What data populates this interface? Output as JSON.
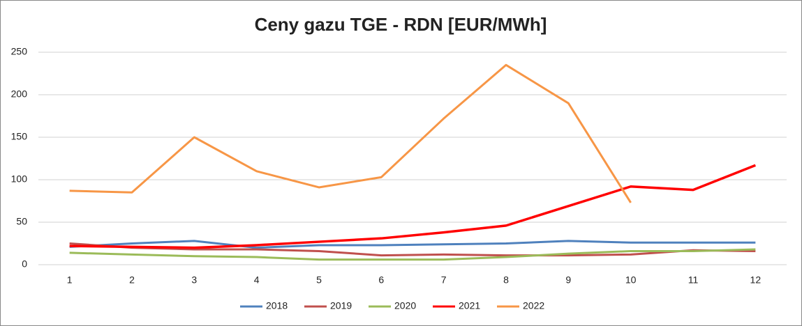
{
  "chart_data": {
    "type": "line",
    "title": "Ceny gazu TGE - RDN [EUR/MWh]",
    "categories": [
      "1",
      "2",
      "3",
      "4",
      "5",
      "6",
      "7",
      "8",
      "9",
      "10",
      "11",
      "12"
    ],
    "series": [
      {
        "name": "2018",
        "color": "#4f81bd",
        "values": [
          21,
          25,
          28,
          20,
          23,
          23,
          24,
          25,
          28,
          26,
          26,
          26
        ]
      },
      {
        "name": "2019",
        "color": "#c0504d",
        "values": [
          25,
          20,
          18,
          18,
          16,
          11,
          12,
          11,
          11,
          12,
          17,
          16
        ]
      },
      {
        "name": "2020",
        "color": "#9bbb59",
        "values": [
          14,
          12,
          10,
          9,
          6,
          6,
          6,
          9,
          13,
          16,
          16,
          18
        ]
      },
      {
        "name": "2021",
        "color": "#ff0000",
        "values": [
          22,
          21,
          20,
          23,
          27,
          31,
          38,
          46,
          69,
          92,
          88,
          117
        ]
      },
      {
        "name": "2022",
        "color": "#f79646",
        "values": [
          87,
          85,
          150,
          110,
          91,
          103,
          172,
          235,
          190,
          73,
          null,
          null
        ]
      }
    ],
    "ylim": [
      0,
      250
    ],
    "yticks": [
      0,
      50,
      100,
      150,
      200,
      250
    ],
    "grid": true,
    "legend": "bottom"
  }
}
